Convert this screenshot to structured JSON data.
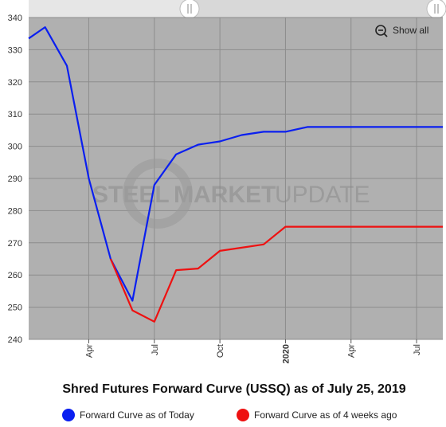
{
  "colors": {
    "plot_background": "#b0b0b0",
    "grid": "#8c8c8c",
    "today": "#0a1ff0",
    "four_weeks": "#ee1111",
    "navigator_bg": "#e6e6e6",
    "navigator_selected": "#d8d8d8"
  },
  "toolbar": {
    "show_all_label": "Show all",
    "show_all_icon": "zoom-out-icon"
  },
  "watermark": {
    "text_a": "STEEL",
    "text_b": "MARKET",
    "text_c": "UPDATE"
  },
  "chart_data": {
    "type": "line",
    "title": "Shred Futures Forward Curve (USSQ) as of July 25, 2019",
    "x_ticks": [
      {
        "label": "Apr",
        "month": 4,
        "bold": false
      },
      {
        "label": "Jul",
        "month": 7,
        "bold": false
      },
      {
        "label": "Oct",
        "month": 10,
        "bold": false
      },
      {
        "label": "2020",
        "month": 13,
        "bold": true
      },
      {
        "label": "Apr",
        "month": 16,
        "bold": false
      },
      {
        "label": "Jul",
        "month": 19,
        "bold": false
      }
    ],
    "xlim": [
      1.25,
      20.2
    ],
    "ylim": [
      240,
      340
    ],
    "y_ticks": [
      240,
      250,
      260,
      270,
      280,
      290,
      300,
      310,
      320,
      330,
      340
    ],
    "grid": true,
    "legend_position": "bottom",
    "series": [
      {
        "name": "Forward Curve as of Today",
        "color": "#0a1ff0",
        "points": [
          [
            1.25,
            333.5
          ],
          [
            2,
            337
          ],
          [
            3,
            325
          ],
          [
            4,
            290
          ],
          [
            5,
            265
          ],
          [
            6,
            252
          ],
          [
            7,
            288
          ],
          [
            8,
            297.5
          ],
          [
            9,
            300.5
          ],
          [
            10,
            301.5
          ],
          [
            11,
            303.5
          ],
          [
            12,
            304.5
          ],
          [
            13,
            304.5
          ],
          [
            14,
            306
          ],
          [
            15,
            306
          ],
          [
            16,
            306
          ],
          [
            17,
            306
          ],
          [
            18,
            306
          ],
          [
            19,
            306
          ],
          [
            20.2,
            306
          ]
        ]
      },
      {
        "name": "Forward Curve as of 4 weeks ago",
        "color": "#ee1111",
        "points": [
          [
            5,
            265
          ],
          [
            6,
            249
          ],
          [
            7,
            245.5
          ],
          [
            8,
            261.5
          ],
          [
            9,
            262
          ],
          [
            10,
            267.5
          ],
          [
            11,
            268.5
          ],
          [
            12,
            269.5
          ],
          [
            13,
            275
          ],
          [
            14,
            275
          ],
          [
            15,
            275
          ],
          [
            16,
            275
          ],
          [
            17,
            275
          ],
          [
            18,
            275
          ],
          [
            19,
            275
          ],
          [
            20.2,
            275
          ]
        ]
      }
    ]
  }
}
